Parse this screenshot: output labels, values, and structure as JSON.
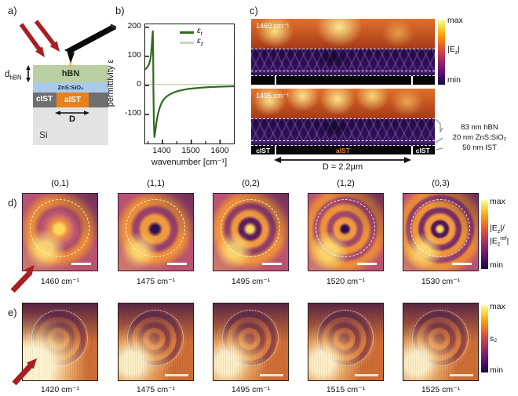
{
  "panels": {
    "a": {
      "label": "a)",
      "thickness_label": {
        "base": "d",
        "sub": "hBN"
      },
      "layers": {
        "hbn": "hBN",
        "zns": "ZnS:SiO₂",
        "cist": "cIST",
        "aist": "aIST",
        "si": "Si"
      },
      "width_label": "D",
      "colors": {
        "hbn": "#b9cfa2",
        "zns": "#a9cbe9",
        "cist": "#6f6f6f",
        "aist": "#e8801e",
        "si": "#e3e3e3",
        "arrow_red": "#a81e22"
      }
    },
    "b": {
      "label": "b)",
      "legend": [
        {
          "symbol": "ε",
          "sub": "t"
        },
        {
          "symbol": "ε",
          "sub": "z"
        }
      ]
    },
    "c": {
      "label": "c)",
      "images": [
        {
          "wavenumber": "1460 cm⁻¹"
        },
        {
          "wavenumber": "1495 cm⁻¹"
        }
      ],
      "bottom_labels": [
        "cIST",
        "aIST",
        "cIST"
      ],
      "aist_label_color": "#f08030",
      "colorbar": {
        "max": "max",
        "min": "min",
        "label": {
          "p1": "|E",
          "sub": "z",
          "p2": "|"
        }
      },
      "dimension_label": "D = 2.2µm",
      "layer_annotations": [
        "83 nm hBN",
        "20 nm ZnS:SiO₂",
        "50 nm IST"
      ]
    },
    "d": {
      "label": "d)",
      "modes": [
        "(0,1)",
        "(1,1)",
        "(0,2)",
        "(1,2)",
        "(0,3)"
      ],
      "wavenumbers": [
        "1460 cm⁻¹",
        "1475 cm⁻¹",
        "1495 cm⁻¹",
        "1520 cm⁻¹",
        "1530 cm⁻¹"
      ],
      "colorbar": {
        "max": "max",
        "min": "min",
        "line1": {
          "p1": "|E",
          "sub": "z",
          "p2": "|/"
        },
        "line2": {
          "p1": "|E",
          "sub": "z",
          "sup": "ref",
          "p2": "|"
        }
      }
    },
    "e": {
      "label": "e)",
      "wavenumbers": [
        "1420 cm⁻¹",
        "1475 cm⁻¹",
        "1495 cm⁻¹",
        "1515 cm⁻¹",
        "1525 cm⁻¹"
      ],
      "colorbar": {
        "max": "max",
        "mid": "s₂",
        "min": "min"
      }
    }
  },
  "chart_data": {
    "type": "line",
    "title": "",
    "xlabel": "wavenumber [cm⁻¹]",
    "ylabel": "permittivity ε",
    "xlim": [
      1340,
      1648
    ],
    "ylim": [
      -200,
      210
    ],
    "xticks": [
      1400,
      1500,
      1600
    ],
    "xticks_minor": [
      1350,
      1450,
      1550,
      1650
    ],
    "yticks": [
      200,
      100,
      0,
      -100
    ],
    "grid": false,
    "legend_position": "top-right",
    "series": [
      {
        "name": "ε_t",
        "color": "#2e6b1f",
        "width": 2.2,
        "x": [
          1340,
          1348,
          1354,
          1358,
          1361,
          1363,
          1365,
          1366.5,
          1367.5,
          1368.5,
          1370,
          1372,
          1375,
          1379,
          1384,
          1390,
          1397,
          1405,
          1415,
          1427,
          1440,
          1455,
          1470,
          1490,
          1510,
          1535,
          1560,
          1590,
          1620,
          1648
        ],
        "y": [
          55,
          63,
          74,
          90,
          112,
          138,
          170,
          186,
          120,
          -20,
          -120,
          -178,
          -160,
          -128,
          -100,
          -78,
          -60,
          -48,
          -38,
          -30,
          -24,
          -19,
          -16,
          -12,
          -10,
          -8,
          -6,
          -5,
          -4,
          -3
        ]
      },
      {
        "name": "ε_z",
        "color": "#c9d5c0",
        "width": 1.4,
        "x": [
          1340,
          1648
        ],
        "y": [
          3,
          3
        ]
      }
    ]
  }
}
